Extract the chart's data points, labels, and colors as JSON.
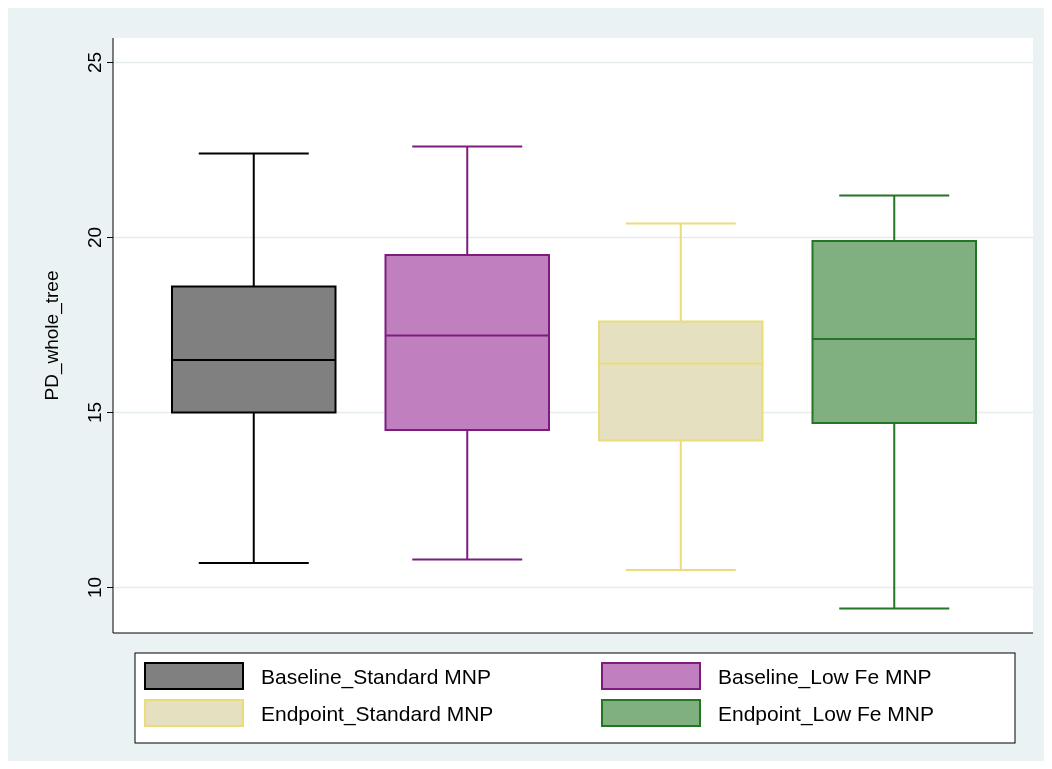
{
  "chart_data": {
    "type": "box",
    "ylabel": "PD_whole_tree",
    "categories": [
      null
    ],
    "ylim": [
      8.7,
      25.7
    ],
    "yticks": [
      10,
      15,
      20,
      25
    ],
    "grid": "y",
    "legend": "bottom",
    "series": [
      {
        "name": "Baseline_Standard MNP",
        "color": "#808080",
        "boxes": [
          {
            "low": 10.7,
            "q1": 15.0,
            "median": 16.5,
            "q3": 18.6,
            "high": 22.4
          }
        ]
      },
      {
        "name": "Baseline_Low Fe MNP",
        "color": "#c080c0",
        "boxes": [
          {
            "low": 10.8,
            "q1": 14.5,
            "median": 17.2,
            "q3": 19.5,
            "high": 22.6
          }
        ]
      },
      {
        "name": "Endpoint_Standard MNP",
        "color": "#e5e0bf",
        "boxes": [
          {
            "low": 10.5,
            "q1": 14.2,
            "median": 16.4,
            "q3": 17.6,
            "high": 20.4
          }
        ]
      },
      {
        "name": "Endpoint_Low Fe MNP",
        "color": "#80b080",
        "boxes": [
          {
            "low": 9.4,
            "q1": 14.7,
            "median": 17.1,
            "q3": 19.9,
            "high": 21.2
          }
        ]
      }
    ]
  }
}
